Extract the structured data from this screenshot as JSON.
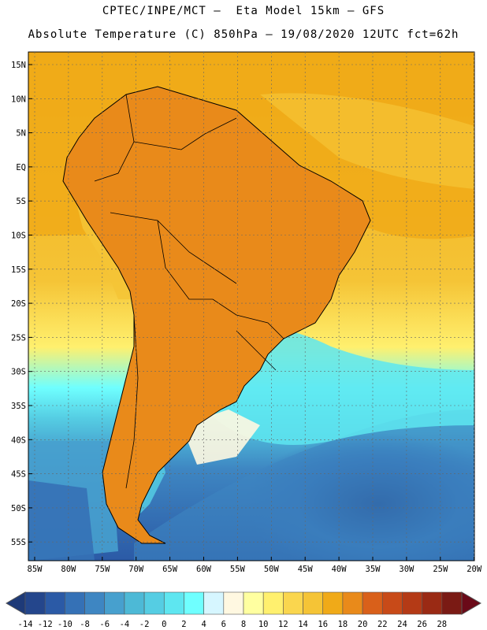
{
  "header": {
    "line1": "CPTEC/INPE/MCT —  Eta Model 15km — GFS",
    "line2": "Absolute Temperature (C) 850hPa — 19/08/2020 12UTC fct=62h"
  },
  "map": {
    "lat_labels": [
      "15N",
      "10N",
      "5N",
      "EQ",
      "5S",
      "10S",
      "15S",
      "20S",
      "25S",
      "30S",
      "35S",
      "40S",
      "45S",
      "50S",
      "55S"
    ],
    "lon_labels": [
      "85W",
      "80W",
      "75W",
      "70W",
      "65W",
      "60W",
      "55W",
      "50W",
      "45W",
      "40W",
      "35W",
      "30W",
      "25W",
      "20W"
    ],
    "colors": {
      "ocean_warm": "#F0AA18",
      "land_hot": "#D96A18",
      "ocean_cold": "#2E66B0",
      "border": "#000000"
    }
  },
  "colorbar": {
    "tick_labels": [
      "-14",
      "-12",
      "-10",
      "-8",
      "-6",
      "-4",
      "-2",
      "0",
      "2",
      "4",
      "6",
      "8",
      "10",
      "12",
      "14",
      "16",
      "18",
      "20",
      "22",
      "24",
      "26",
      "28"
    ],
    "colors": [
      "#24468C",
      "#2B5AA6",
      "#3571B6",
      "#3E86C2",
      "#47A0CE",
      "#4DB9D6",
      "#55CDE3",
      "#5EE6F0",
      "#6FFFFF",
      "#D6F6FF",
      "#FFF8E1",
      "#FFFFA0",
      "#FFF06E",
      "#FAD64E",
      "#F5C436",
      "#F0AA18",
      "#E98A1A",
      "#D9601A",
      "#C84A18",
      "#B43A16",
      "#9A2A14",
      "#7A1A14"
    ],
    "under_color": "#1E3A78",
    "over_color": "#6A0A18"
  }
}
